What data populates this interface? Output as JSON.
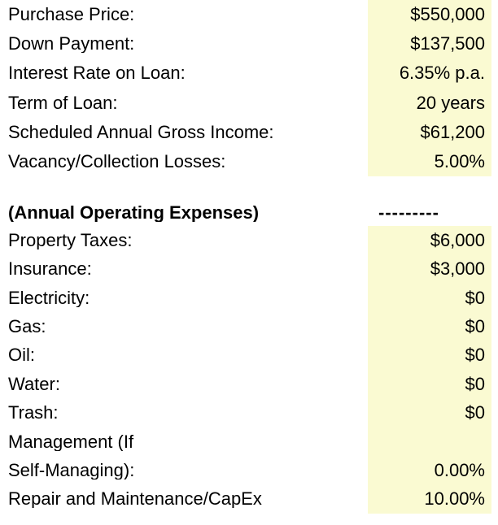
{
  "page": {
    "background_color": "#FFFFFF",
    "text_color": "#000000",
    "input_cell_color": "#FAFAD2"
  },
  "section_header": {
    "title": "(Annual Operating Expenses)",
    "divider": "---------"
  },
  "rows": [
    {
      "label": "Purchase Price:",
      "value": "$550,000",
      "highlight": true,
      "type": "data"
    },
    {
      "label": "Down Payment:",
      "value": "$137,500",
      "highlight": true,
      "type": "data"
    },
    {
      "label": "Interest Rate on Loan:",
      "value": "6.35% p.a.",
      "highlight": true,
      "type": "data"
    },
    {
      "label": "Term of Loan:",
      "value": "20 years",
      "highlight": true,
      "type": "data"
    },
    {
      "label": "Scheduled Annual Gross Income:",
      "value": "$61,200",
      "highlight": true,
      "type": "data"
    },
    {
      "label": "Vacancy/Collection Losses:",
      "value": "5.00%",
      "highlight": true,
      "type": "data"
    },
    {
      "label": "",
      "value": "",
      "highlight": false,
      "type": "spacer"
    },
    {
      "label": "(Annual Operating Expenses)",
      "value": "---------",
      "highlight": false,
      "type": "section-header"
    },
    {
      "label": "Property Taxes:",
      "value": "$6,000",
      "highlight": true,
      "type": "data"
    },
    {
      "label": "Insurance:",
      "value": "$3,000",
      "highlight": true,
      "type": "data"
    },
    {
      "label": "Electricity:",
      "value": "$0",
      "highlight": true,
      "type": "data"
    },
    {
      "label": "Gas:",
      "value": "$0",
      "highlight": true,
      "type": "data"
    },
    {
      "label": "Oil:",
      "value": "$0",
      "highlight": true,
      "type": "data"
    },
    {
      "label": "Water:",
      "value": "$0",
      "highlight": true,
      "type": "data"
    },
    {
      "label": "Trash:",
      "value": "$0",
      "highlight": true,
      "type": "data"
    },
    {
      "label": "Management (If",
      "value": "",
      "highlight": true,
      "type": "data"
    },
    {
      "label": "Self-Managing):",
      "value": "0.00%",
      "highlight": true,
      "type": "data"
    },
    {
      "label": "Repair and Maintenance/CapEx",
      "value": "10.00%",
      "highlight": true,
      "type": "data"
    }
  ]
}
